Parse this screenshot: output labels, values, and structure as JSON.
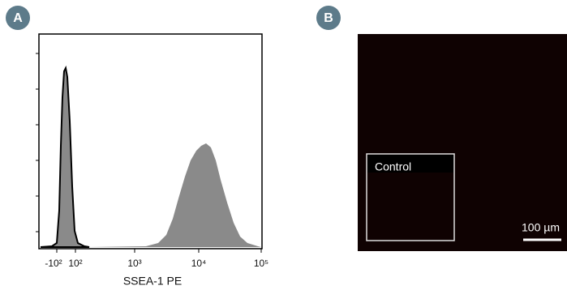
{
  "panel_a": {
    "label": "A",
    "x_axis_label": "SSEA-1 PE",
    "x_ticks": [
      "-10²",
      "10²",
      "10³",
      "10⁴",
      "10⁵"
    ]
  },
  "panel_b": {
    "label": "B",
    "inset_label": "Control",
    "scale_bar_label": "100 µm"
  }
}
